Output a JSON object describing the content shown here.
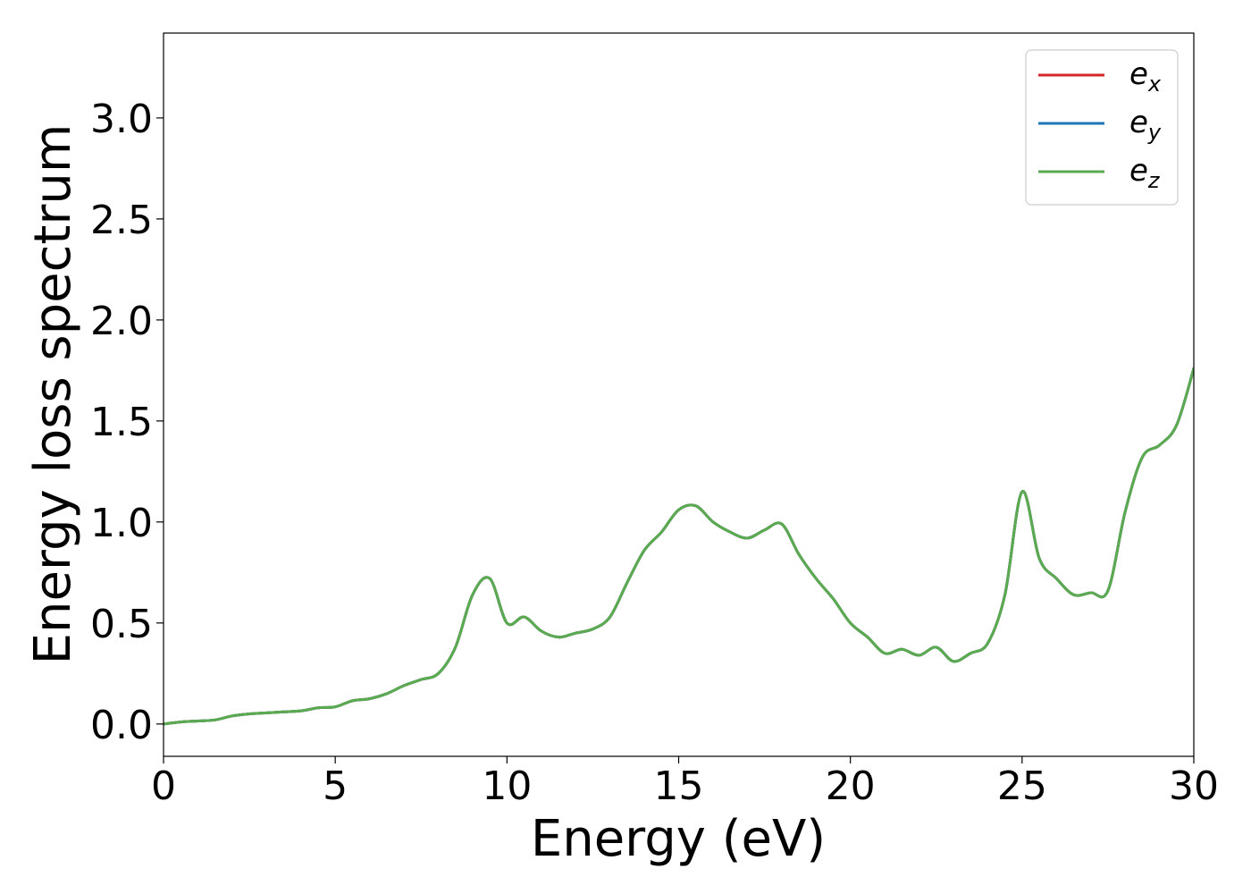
{
  "chart_data": {
    "type": "line",
    "title": "",
    "xlabel": "Energy (eV)",
    "ylabel": "Energy loss spectrum",
    "xlim": [
      0,
      30
    ],
    "ylim": [
      -0.16,
      3.42
    ],
    "xticks": [
      0,
      5,
      10,
      15,
      20,
      25,
      30
    ],
    "yticks": [
      0.0,
      0.5,
      1.0,
      1.5,
      2.0,
      2.5,
      3.0
    ],
    "xtick_labels": [
      "0",
      "5",
      "10",
      "15",
      "20",
      "25",
      "30"
    ],
    "ytick_labels": [
      "0.0",
      "0.5",
      "1.0",
      "1.5",
      "2.0",
      "2.5",
      "3.0"
    ],
    "grid": false,
    "legend_position": "top-right",
    "x": [
      0,
      0.5,
      1,
      1.5,
      2,
      2.5,
      3,
      3.5,
      4,
      4.5,
      5,
      5.5,
      6,
      6.5,
      7,
      7.5,
      8,
      8.5,
      9,
      9.5,
      10,
      10.5,
      11,
      11.5,
      12,
      12.5,
      13,
      13.5,
      14,
      14.5,
      15,
      15.5,
      16,
      16.5,
      17,
      17.5,
      18,
      18.5,
      19,
      19.5,
      20,
      20.5,
      21,
      21.5,
      22,
      22.5,
      23,
      23.5,
      24,
      24.5,
      25,
      25.5,
      26,
      26.5,
      27,
      27.5,
      28,
      28.5,
      29,
      29.5,
      30
    ],
    "series": [
      {
        "name": "e",
        "subscript": "x",
        "color": "#d62728",
        "values": [
          0.0,
          0.01,
          0.015,
          0.02,
          0.04,
          0.05,
          0.055,
          0.06,
          0.065,
          0.08,
          0.085,
          0.115,
          0.125,
          0.15,
          0.19,
          0.22,
          0.25,
          0.38,
          0.64,
          0.72,
          0.5,
          0.53,
          0.46,
          0.43,
          0.45,
          0.47,
          0.53,
          0.7,
          0.86,
          0.95,
          1.06,
          1.08,
          1.0,
          0.95,
          0.92,
          0.96,
          0.99,
          0.84,
          0.72,
          0.62,
          0.5,
          0.43,
          0.35,
          0.37,
          0.34,
          0.38,
          0.31,
          0.35,
          0.4,
          0.64,
          1.15,
          0.82,
          0.72,
          0.64,
          0.65,
          0.66,
          1.05,
          1.32,
          1.38,
          1.48,
          1.76
        ]
      },
      {
        "name": "e",
        "subscript": "y",
        "color": "#1f77b4",
        "values": [
          0.0,
          0.01,
          0.015,
          0.02,
          0.04,
          0.05,
          0.055,
          0.06,
          0.065,
          0.08,
          0.085,
          0.115,
          0.125,
          0.15,
          0.19,
          0.22,
          0.25,
          0.38,
          0.64,
          0.72,
          0.5,
          0.53,
          0.46,
          0.43,
          0.45,
          0.47,
          0.53,
          0.7,
          0.86,
          0.95,
          1.06,
          1.08,
          1.0,
          0.95,
          0.92,
          0.96,
          0.99,
          0.84,
          0.72,
          0.62,
          0.5,
          0.43,
          0.35,
          0.37,
          0.34,
          0.38,
          0.31,
          0.35,
          0.4,
          0.64,
          1.15,
          0.82,
          0.72,
          0.64,
          0.65,
          0.66,
          1.05,
          1.32,
          1.38,
          1.48,
          1.76
        ]
      },
      {
        "name": "e",
        "subscript": "z",
        "color": "#5aaa50",
        "values": [
          0.0,
          0.01,
          0.015,
          0.02,
          0.04,
          0.05,
          0.055,
          0.06,
          0.065,
          0.08,
          0.085,
          0.115,
          0.125,
          0.15,
          0.19,
          0.22,
          0.25,
          0.38,
          0.64,
          0.72,
          0.5,
          0.53,
          0.46,
          0.43,
          0.45,
          0.47,
          0.53,
          0.7,
          0.86,
          0.95,
          1.06,
          1.08,
          1.0,
          0.95,
          0.92,
          0.96,
          0.99,
          0.84,
          0.72,
          0.62,
          0.5,
          0.43,
          0.35,
          0.37,
          0.34,
          0.38,
          0.31,
          0.35,
          0.4,
          0.64,
          1.15,
          0.82,
          0.72,
          0.64,
          0.65,
          0.66,
          1.05,
          1.32,
          1.38,
          1.48,
          1.76
        ]
      }
    ]
  }
}
